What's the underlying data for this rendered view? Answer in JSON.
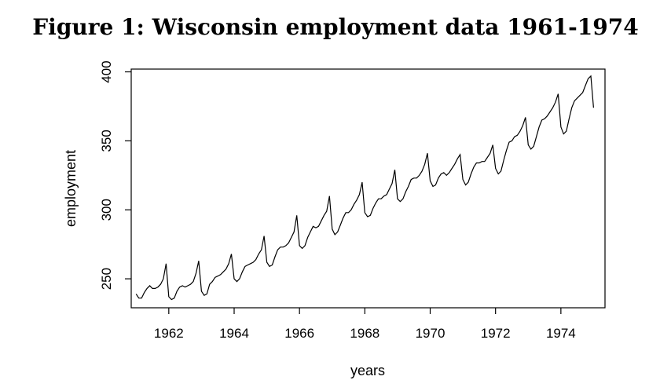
{
  "figure": {
    "title": "Figure 1: Wisconsin employment data 1961-1974"
  },
  "chart_data": {
    "type": "line",
    "title": "Figure 1: Wisconsin employment data 1961-1974",
    "xlabel": "years",
    "ylabel": "employment",
    "xlim": [
      1960.85,
      1975.35
    ],
    "ylim": [
      229,
      402
    ],
    "x_ticks": [
      1962,
      1964,
      1966,
      1968,
      1970,
      1972,
      1974
    ],
    "y_ticks": [
      250,
      300,
      350,
      400
    ],
    "grid": false,
    "series": [
      {
        "x_start": 1961,
        "frequency": 12,
        "values": [
          239.0,
          236.0,
          236.0,
          240.0,
          243.0,
          245.0,
          243.0,
          243.0,
          244.0,
          246.0,
          250.0,
          261.0,
          237.0,
          235.0,
          236.0,
          241.0,
          244.0,
          245.0,
          244.0,
          245.0,
          246.0,
          248.0,
          254.0,
          263.0,
          241.0,
          238.0,
          239.0,
          246.0,
          248.0,
          251.0,
          252.0,
          253.0,
          255.0,
          257.0,
          261.0,
          268.0,
          250.0,
          248.0,
          250.0,
          255.0,
          259.0,
          260.0,
          261.0,
          262.0,
          264.0,
          268.0,
          271.0,
          281.0,
          262.0,
          259.0,
          260.0,
          266.0,
          271.0,
          273.0,
          273.0,
          274.0,
          276.0,
          280.0,
          284.0,
          296.0,
          274.0,
          272.0,
          274.0,
          280.0,
          284.0,
          288.0,
          287.0,
          288.0,
          292.0,
          296.0,
          299.0,
          310.0,
          286.0,
          282.0,
          284.0,
          289.0,
          294.0,
          298.0,
          298.0,
          300.0,
          304.0,
          307.0,
          311.0,
          320.0,
          298.0,
          295.0,
          296.0,
          301.0,
          305.0,
          308.0,
          308.0,
          310.0,
          311.0,
          315.0,
          319.0,
          329.0,
          308.0,
          306.0,
          308.0,
          313.0,
          317.0,
          322.0,
          323.0,
          323.0,
          325.0,
          328.0,
          333.0,
          341.0,
          321.0,
          317.0,
          318.0,
          323.0,
          326.0,
          327.0,
          325.0,
          327.0,
          330.0,
          333.0,
          337.0,
          340.0,
          322.0,
          318.0,
          320.0,
          326.0,
          331.0,
          334.0,
          334.0,
          335.0,
          335.0,
          338.0,
          341.0,
          347.0,
          330.0,
          326.0,
          328.0,
          336.0,
          343.0,
          349.0,
          350.0,
          353.0,
          354.0,
          357.0,
          361.0,
          367.0,
          347.0,
          344.0,
          346.0,
          353.0,
          360.0,
          365.0,
          366.0,
          368.0,
          371.0,
          374.0,
          378.0,
          384.0,
          360.0,
          355.0,
          357.0,
          366.0,
          374.0,
          379.0,
          381.0,
          383.0,
          385.0,
          390.0,
          395.0,
          397.0,
          374.0
        ]
      }
    ]
  }
}
